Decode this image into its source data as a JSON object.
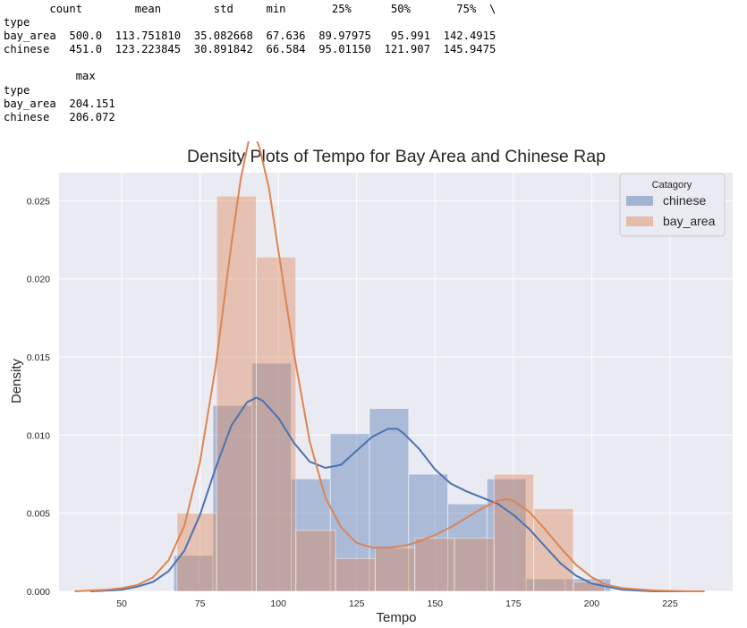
{
  "describe_output": {
    "lines": [
      "       count        mean        std     min       25%      50%       75%  \\",
      "type",
      "bay_area  500.0  113.751810  35.082668  67.636  89.97975   95.991  142.4915",
      "chinese   451.0  123.223845  30.891842  66.584  95.01150  121.907  145.9475",
      "",
      "           max",
      "type",
      "bay_area  204.151",
      "chinese   206.072"
    ]
  },
  "chart_data": {
    "type": "bar",
    "title": "Density Plots of Tempo for Bay Area and Chinese Rap",
    "xlabel": "Tempo",
    "ylabel": "Density",
    "xlim": [
      30,
      245
    ],
    "ylim": [
      0,
      0.0268
    ],
    "xticks": [
      50,
      75,
      100,
      125,
      150,
      175,
      200,
      225
    ],
    "yticks": [
      0.0,
      0.005,
      0.01,
      0.015,
      0.02,
      0.025
    ],
    "ytick_labels": [
      "0.000",
      "0.005",
      "0.010",
      "0.015",
      "0.020",
      "0.025"
    ],
    "grid": true,
    "background": "#eaeaf2",
    "legend": {
      "title": "Catagory",
      "position": "top-right"
    },
    "series": [
      {
        "name": "chinese",
        "color": "#4c72b0",
        "histogram": {
          "bin_edges": [
            66.584,
            79.083,
            91.582,
            104.081,
            116.58,
            129.079,
            141.578,
            154.077,
            166.576,
            179.075,
            191.574,
            206.072
          ],
          "densities": [
            0.0023,
            0.0119,
            0.0146,
            0.0072,
            0.0101,
            0.0117,
            0.0075,
            0.0056,
            0.0072,
            0.0008,
            0.0008
          ]
        },
        "kde": {
          "x": [
            40,
            50,
            55,
            60,
            65,
            70,
            75,
            80,
            85,
            90,
            93,
            95,
            100,
            105,
            110,
            115,
            120,
            125,
            130,
            135,
            138,
            140,
            145,
            150,
            155,
            160,
            165,
            170,
            175,
            180,
            185,
            190,
            195,
            200,
            205,
            210,
            215,
            220,
            230,
            236
          ],
          "y": [
            0.0,
            0.0001,
            0.0003,
            0.0006,
            0.0013,
            0.0026,
            0.0049,
            0.0079,
            0.0106,
            0.0121,
            0.0124,
            0.0122,
            0.0111,
            0.0095,
            0.0083,
            0.0079,
            0.0081,
            0.009,
            0.0099,
            0.0104,
            0.0104,
            0.0101,
            0.0091,
            0.0078,
            0.0069,
            0.0064,
            0.006,
            0.0056,
            0.0049,
            0.004,
            0.0029,
            0.0018,
            0.001,
            0.0005,
            0.0003,
            0.0001,
            5e-05,
            0.0,
            0.0,
            0.0
          ]
        }
      },
      {
        "name": "bay_area",
        "color": "#dd8452",
        "histogram": {
          "bin_edges": [
            67.636,
            80.288,
            92.94,
            105.592,
            118.244,
            130.896,
            143.548,
            156.2,
            168.852,
            181.504,
            194.156,
            204.151
          ],
          "densities": [
            0.005,
            0.0253,
            0.0214,
            0.0039,
            0.0021,
            0.0028,
            0.0034,
            0.0034,
            0.0075,
            0.0053,
            0.0006
          ]
        },
        "kde": {
          "x": [
            35,
            45,
            50,
            55,
            60,
            65,
            70,
            75,
            80,
            85,
            88,
            91,
            92,
            94,
            97,
            100,
            105,
            110,
            115,
            120,
            125,
            130,
            135,
            140,
            145,
            150,
            155,
            160,
            165,
            170,
            173,
            175,
            180,
            185,
            190,
            195,
            200,
            205,
            210,
            220,
            230,
            236
          ],
          "y": [
            0.0,
            0.0001,
            0.0002,
            0.0004,
            0.0009,
            0.002,
            0.0042,
            0.0083,
            0.0144,
            0.0222,
            0.0264,
            0.0293,
            0.0295,
            0.0284,
            0.0258,
            0.0218,
            0.0152,
            0.0096,
            0.006,
            0.0041,
            0.0031,
            0.0028,
            0.0028,
            0.0029,
            0.0032,
            0.0036,
            0.0041,
            0.0047,
            0.0053,
            0.0058,
            0.0059,
            0.0058,
            0.0051,
            0.004,
            0.0028,
            0.0017,
            0.0009,
            0.0004,
            0.0002,
            5e-05,
            0.0,
            0.0
          ]
        }
      }
    ]
  }
}
